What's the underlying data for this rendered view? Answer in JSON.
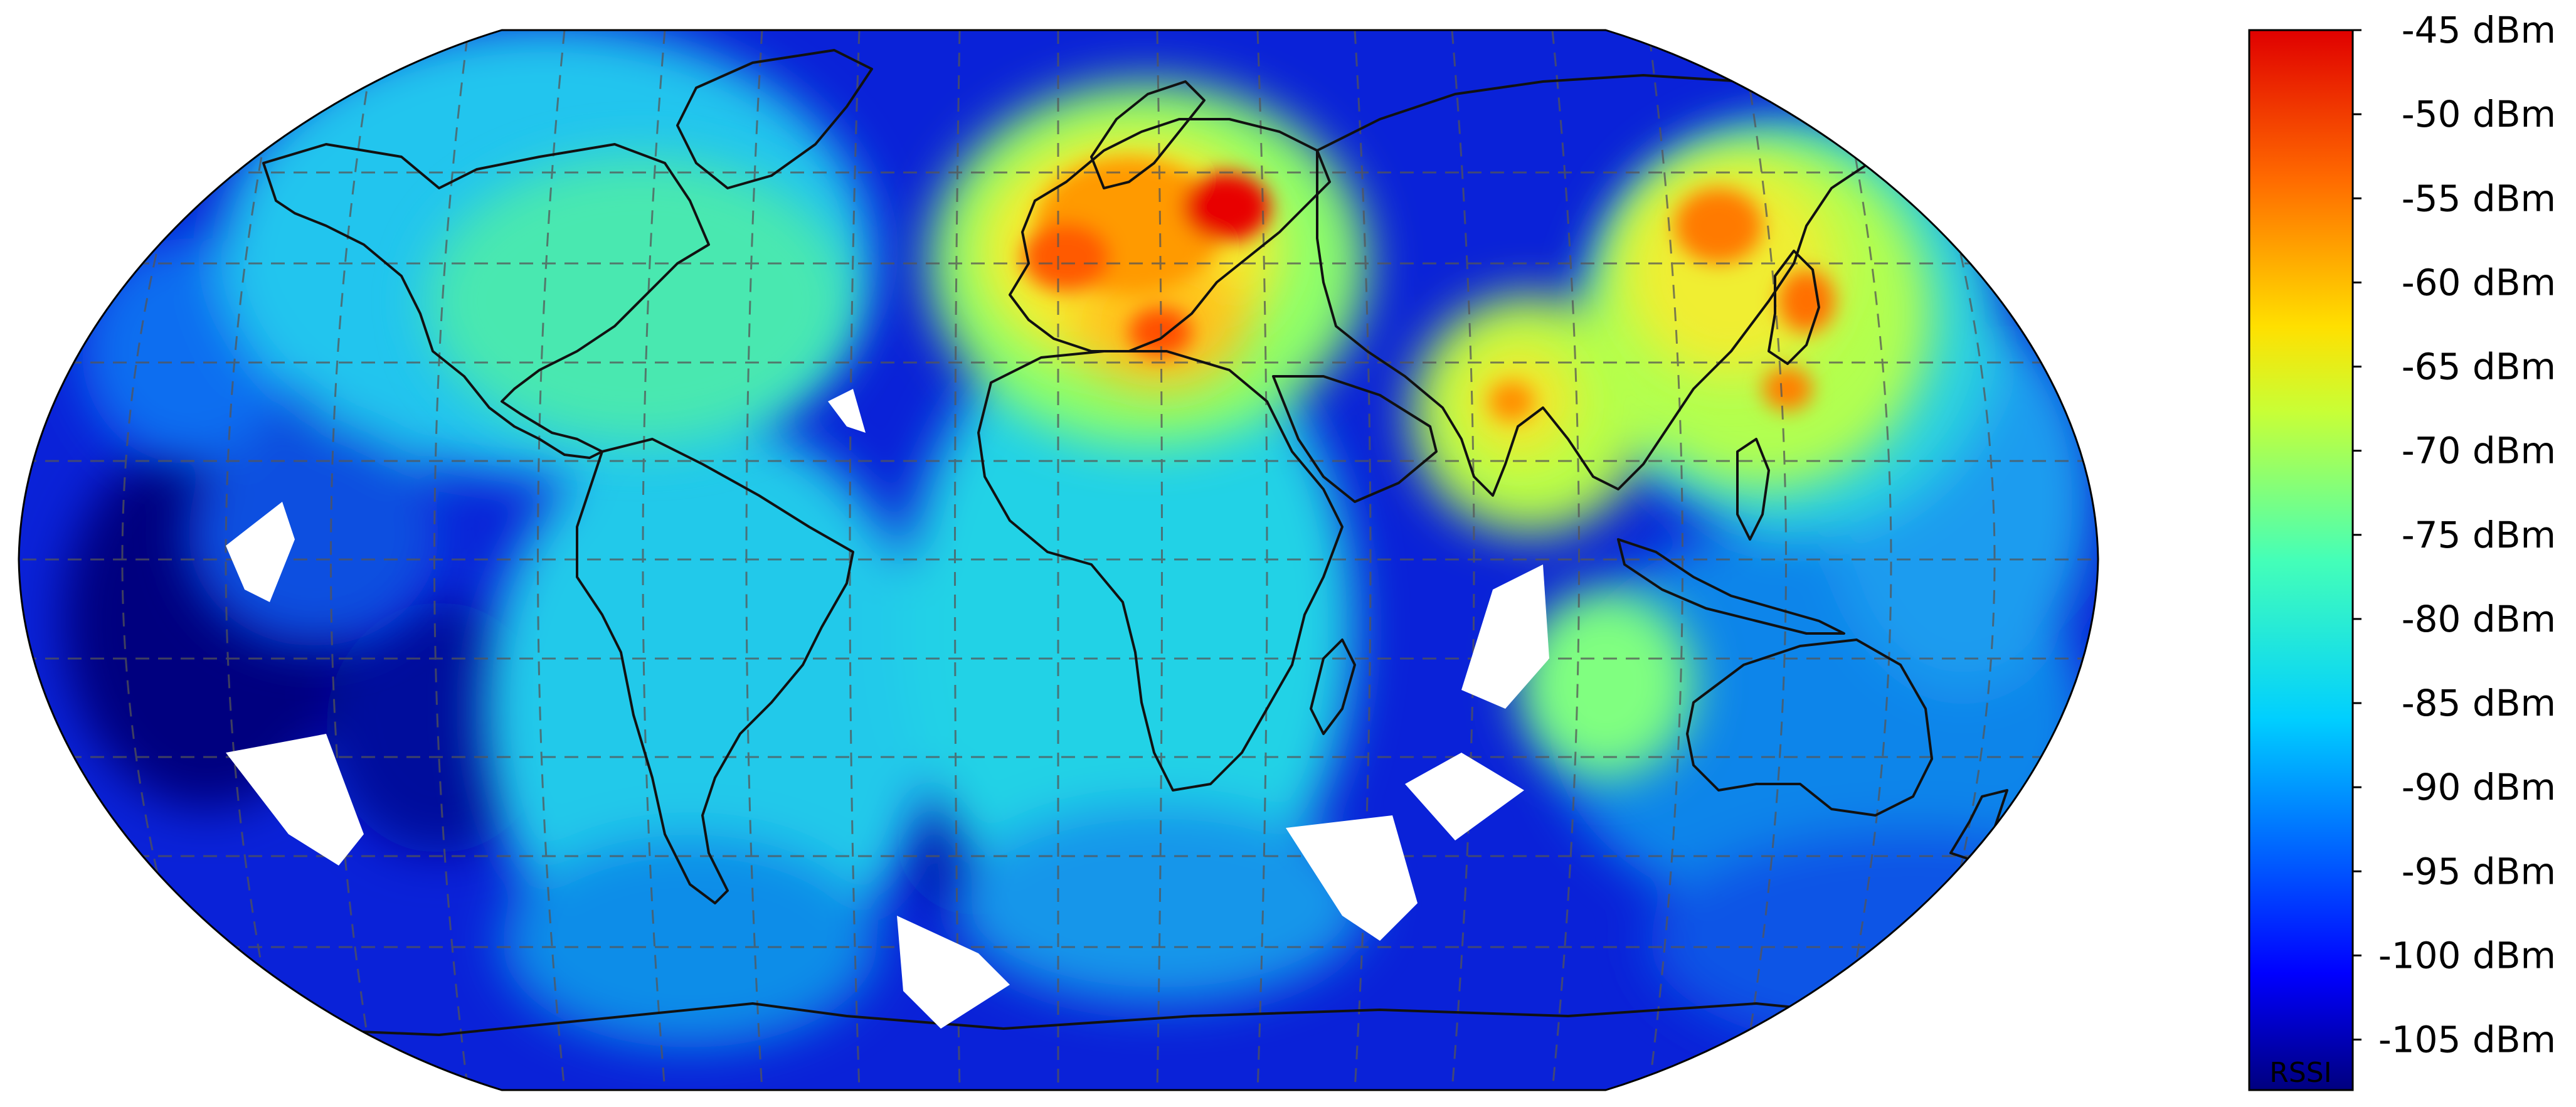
{
  "map": {
    "projection": "Robinson",
    "graticule": "dashed grey",
    "coastlines": "black outline",
    "colormap": "jet",
    "colors": {
      "ocean_base": "#0a1fd6",
      "deep": "#00007f",
      "cyan": "#1fd7e8",
      "green": "#7fff7a",
      "yellow": "#f5f032",
      "orange": "#ff8a00",
      "red": "#e00000",
      "coast": "#111111",
      "grid": "#6a6a6a"
    },
    "hotspots": [
      {
        "region": "Central Europe",
        "lon": 15,
        "lat": 50,
        "rssi": -50
      },
      {
        "region": "Western Europe",
        "lon": 2,
        "lat": 46,
        "rssi": -57
      },
      {
        "region": "Eastern Mediterranean",
        "lon": 28,
        "lat": 32,
        "rssi": -57
      },
      {
        "region": "Northeast China",
        "lon": 125,
        "lat": 45,
        "rssi": -57
      },
      {
        "region": "Japan",
        "lon": 138,
        "lat": 37,
        "rssi": -58
      },
      {
        "region": "South China",
        "lon": 115,
        "lat": 25,
        "rssi": -60
      },
      {
        "region": "India",
        "lon": 78,
        "lat": 23,
        "rssi": -60
      }
    ]
  },
  "colorbar": {
    "label": "RSSI",
    "min": -108,
    "max": -45,
    "ticks": [
      {
        "value": -45,
        "label": "-45 dBm"
      },
      {
        "value": -50,
        "label": "-50 dBm"
      },
      {
        "value": -55,
        "label": "-55 dBm"
      },
      {
        "value": -60,
        "label": "-60 dBm"
      },
      {
        "value": -65,
        "label": "-65 dBm"
      },
      {
        "value": -70,
        "label": "-70 dBm"
      },
      {
        "value": -75,
        "label": "-75 dBm"
      },
      {
        "value": -80,
        "label": "-80 dBm"
      },
      {
        "value": -85,
        "label": "-85 dBm"
      },
      {
        "value": -90,
        "label": "-90 dBm"
      },
      {
        "value": -95,
        "label": "-95 dBm"
      },
      {
        "value": -100,
        "label": "-100 dBm"
      },
      {
        "value": -105,
        "label": "-105 dBm"
      }
    ]
  }
}
